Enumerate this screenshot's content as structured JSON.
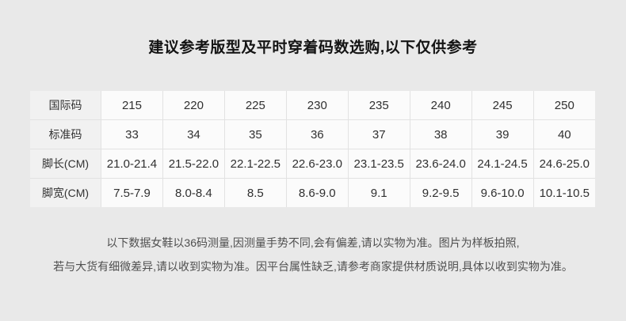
{
  "title": "建议参考版型及平时穿着码数选购,以下仅供参考",
  "table": {
    "rows": [
      {
        "label": "国际码",
        "values": [
          "215",
          "220",
          "225",
          "230",
          "235",
          "240",
          "245",
          "250"
        ]
      },
      {
        "label": "标准码",
        "values": [
          "33",
          "34",
          "35",
          "36",
          "37",
          "38",
          "39",
          "40"
        ]
      },
      {
        "label": "脚长(CM)",
        "values": [
          "21.0-21.4",
          "21.5-22.0",
          "22.1-22.5",
          "22.6-23.0",
          "23.1-23.5",
          "23.6-24.0",
          "24.1-24.5",
          "24.6-25.0"
        ]
      },
      {
        "label": "脚宽(CM)",
        "values": [
          "7.5-7.9",
          "8.0-8.4",
          "8.5",
          "8.6-9.0",
          "9.1",
          "9.2-9.5",
          "9.6-10.0",
          "10.1-10.5"
        ]
      }
    ]
  },
  "notes": {
    "line1": "以下数据女鞋以36码测量,因测量手势不同,会有偏差,请以实物为准。图片为样板拍照,",
    "line2": "若与大货有细微差异,请以收到实物为准。因平台属性缺乏,请参考商家提供材质说明,具体以收到实物为准。"
  },
  "colors": {
    "page_bg": "#e9e9e9",
    "cell_bg": "#fbfbfb",
    "label_cell_bg": "#f1f1f1",
    "border": "#e2e2e2",
    "title_text": "#141414",
    "note_text": "#4f4f4f"
  }
}
